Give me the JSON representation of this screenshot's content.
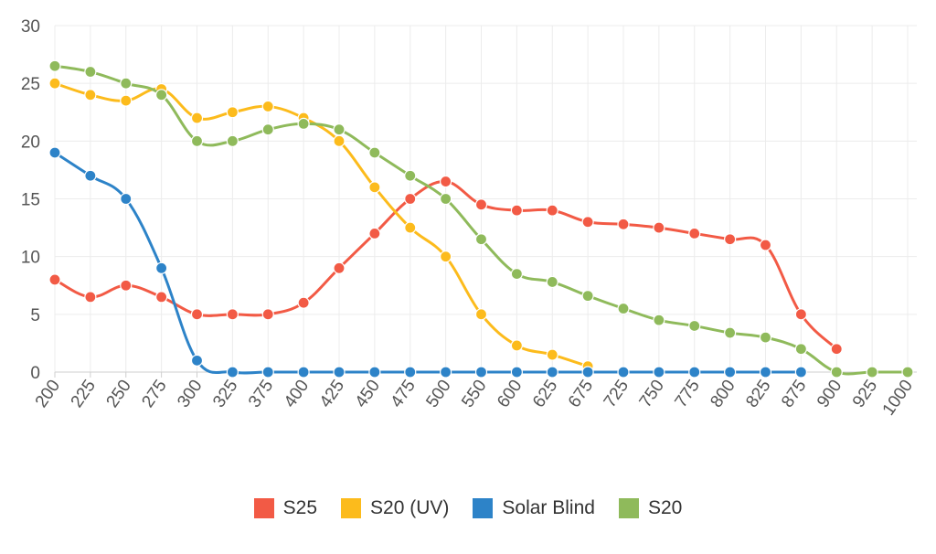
{
  "chart_data": {
    "type": "line",
    "title": "",
    "xlabel": "",
    "ylabel": "",
    "categories": [
      "200",
      "225",
      "250",
      "275",
      "300",
      "325",
      "375",
      "400",
      "425",
      "450",
      "475",
      "500",
      "550",
      "600",
      "625",
      "675",
      "725",
      "750",
      "775",
      "800",
      "825",
      "875",
      "900",
      "925",
      "1000"
    ],
    "ylim": [
      0,
      30
    ],
    "yticks": [
      0,
      5,
      10,
      15,
      20,
      25,
      30
    ],
    "grid": true,
    "legend_position": "bottom",
    "series": [
      {
        "name": "S25",
        "color": "#f25a45",
        "values": [
          8,
          6.5,
          7.5,
          6.5,
          5,
          5,
          5,
          6,
          9,
          12,
          15,
          16.5,
          14.5,
          14,
          14,
          13,
          12.8,
          12.5,
          12,
          11.5,
          11,
          5,
          2,
          null,
          null
        ]
      },
      {
        "name": "S20 (UV)",
        "color": "#fcbb1c",
        "values": [
          25,
          24,
          23.5,
          24.5,
          22,
          22.5,
          23,
          22,
          20,
          16,
          12.5,
          10,
          5,
          2.3,
          1.5,
          0.5,
          null,
          null,
          null,
          null,
          null,
          null,
          null,
          null,
          null
        ]
      },
      {
        "name": "Solar Blind",
        "color": "#2d83c8",
        "values": [
          19,
          17,
          15,
          9,
          1,
          0,
          0,
          0,
          0,
          0,
          0,
          0,
          0,
          0,
          0,
          0,
          0,
          0,
          0,
          0,
          0,
          0,
          null,
          null,
          null
        ]
      },
      {
        "name": "S20",
        "color": "#8fba5b",
        "values": [
          26.5,
          26,
          25,
          24,
          20,
          20,
          21,
          21.5,
          21,
          19,
          17,
          15,
          11.5,
          8.5,
          7.8,
          6.6,
          5.5,
          4.5,
          4,
          3.4,
          3,
          2,
          0,
          0,
          0
        ]
      }
    ]
  }
}
